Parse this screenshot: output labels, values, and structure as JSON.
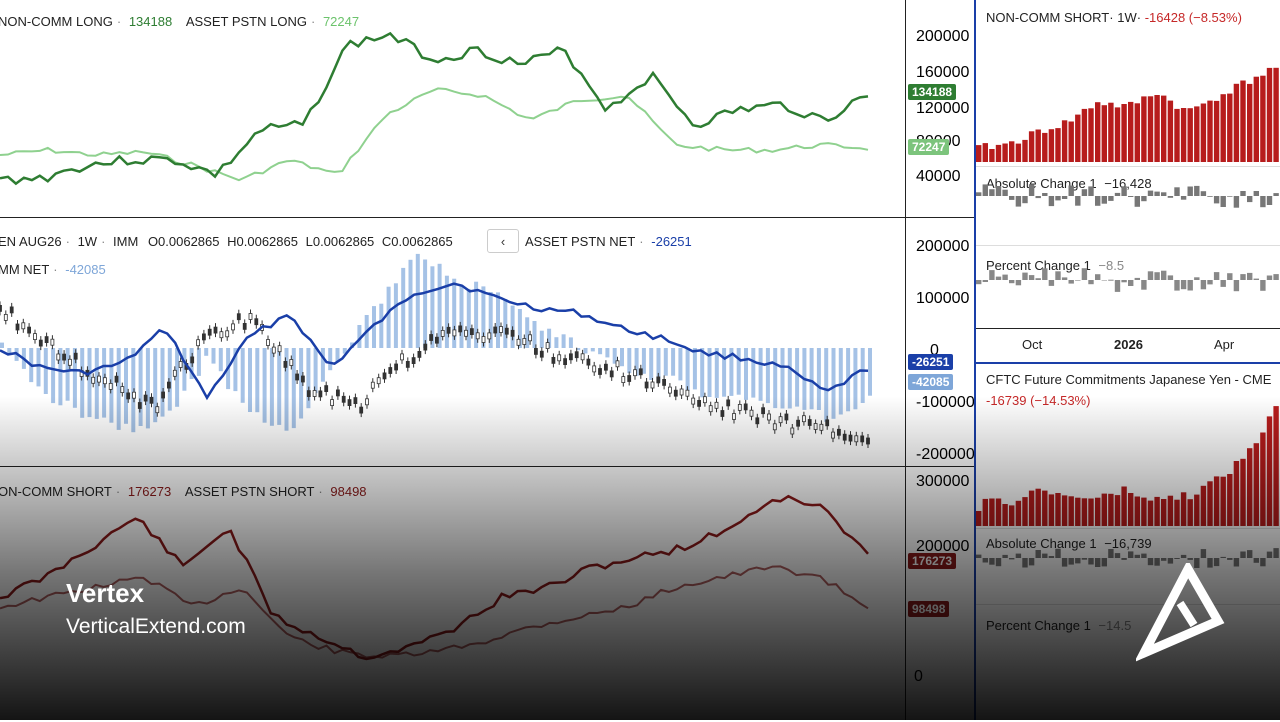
{
  "top_pane": {
    "legend": {
      "series1_name": "NON-COMM LONG",
      "series1_value": "134188",
      "series2_name": "ASSET PSTN LONG",
      "series2_value": "72247"
    },
    "axis_ticks": [
      "200000",
      "160000",
      "120000",
      "80000",
      "40000"
    ],
    "tag_noncomm": "134188",
    "tag_asset": "72247",
    "colors": {
      "noncomm": "#2e7d32",
      "asset": "#8fd18f"
    }
  },
  "mid_pane": {
    "ohlc_legend": {
      "symbol": "EN AUG26",
      "interval": "1W",
      "exchange": "IMM",
      "open": "O0.0062865",
      "high": "H0.0062865",
      "low": "L0.0062865",
      "close": "C0.0062865"
    },
    "asset_net_label": "ASSET PSTN NET",
    "asset_net_value": "-26251",
    "comm_net_label": "MM NET",
    "comm_net_value": "-42085",
    "axis_ticks": [
      "200000",
      "100000",
      "0",
      "-100000",
      "-200000"
    ],
    "tag_asset_net": "-26251",
    "tag_comm_net": "-42085",
    "colors": {
      "net_line": "#1a3fa8",
      "net_bars": "#8fb3e0",
      "candles": "#333333"
    }
  },
  "bottom_pane": {
    "legend": {
      "series1_name": "ON-COMM SHORT",
      "series1_value": "176273",
      "series2_name": "ASSET PSTN SHORT",
      "series2_value": "98498"
    },
    "axis_ticks": [
      "300000",
      "200000",
      "0"
    ],
    "tag_noncomm": "176273",
    "tag_asset": "98498",
    "colors": {
      "noncomm": "#8b1a1a",
      "asset": "#b06060"
    }
  },
  "right_top": {
    "title": "NON-COMM SHORT",
    "interval": "1W",
    "change": "-16428 (−8.53%)",
    "abs_label": "Absolute Change 1",
    "abs_value": "−16,428",
    "pct_label": "Percent Change 1",
    "pct_value": "−8.5",
    "x_labels": [
      "Oct",
      "2026",
      "Apr"
    ]
  },
  "right_bottom": {
    "title": "CFTC Future Commitments Japanese Yen - CME",
    "change": "-16739 (−14.53%)",
    "abs_label": "Absolute Change 1",
    "abs_value": "−16,739",
    "pct_label": "Percent Change 1",
    "pct_value": "−14.5"
  },
  "watermark": {
    "brand_name": "Vertex",
    "website": "VerticalExtend.com",
    "logo": "vertex-triangle-logo"
  }
}
